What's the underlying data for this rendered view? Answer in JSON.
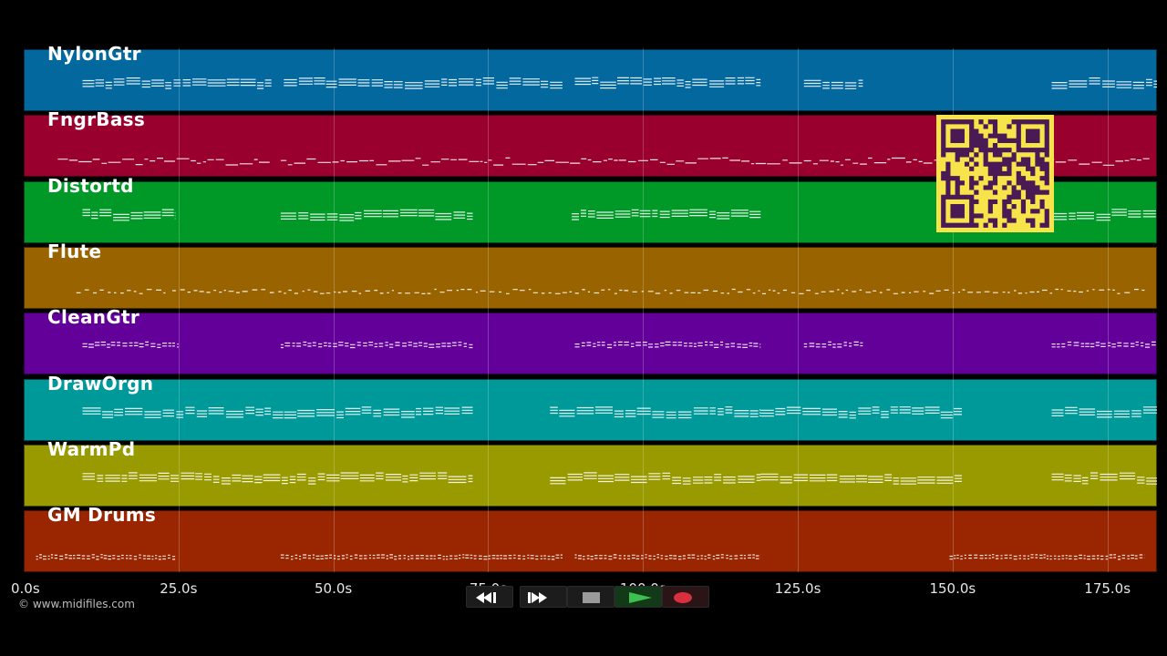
{
  "timeline": {
    "max_seconds": 183,
    "tick_labels": [
      "0.0s",
      "25.0s",
      "50.0s",
      "75.0s",
      "100.0s",
      "125.0s",
      "150.0s",
      "175.0s"
    ],
    "tick_values": [
      0,
      25,
      50,
      75,
      100,
      125,
      150,
      175
    ]
  },
  "tracks": [
    {
      "name": "NylonGtr",
      "color": "#02689e",
      "style": "chord",
      "segments": [
        [
          9.5,
          40
        ],
        [
          42,
          87
        ],
        [
          89,
          119
        ],
        [
          126,
          135.5
        ],
        [
          166,
          183
        ]
      ]
    },
    {
      "name": "FngrBass",
      "color": "#9a002d",
      "style": "bass",
      "segments": [
        [
          5.5,
          40
        ],
        [
          41.5,
          182
        ]
      ]
    },
    {
      "name": "Distortd",
      "color": "#009927",
      "style": "chord",
      "segments": [
        [
          9.5,
          24.5
        ],
        [
          41.5,
          72.5
        ],
        [
          88.5,
          119
        ],
        [
          166,
          183
        ]
      ]
    },
    {
      "name": "Flute",
      "color": "#996300",
      "style": "dots",
      "segments": [
        [
          8.5,
          23
        ],
        [
          24,
          181
        ]
      ]
    },
    {
      "name": "CleanGtr",
      "color": "#630099",
      "style": "dash",
      "segments": [
        [
          9.5,
          25
        ],
        [
          41.5,
          72.5
        ],
        [
          89,
          119
        ],
        [
          126,
          135.5
        ],
        [
          166,
          183
        ]
      ]
    },
    {
      "name": "DrawOrgn",
      "color": "#009999",
      "style": "chord",
      "segments": [
        [
          9.5,
          72.5
        ],
        [
          85,
          119
        ],
        [
          119,
          151.5
        ],
        [
          166,
          183
        ]
      ]
    },
    {
      "name": "WarmPd",
      "color": "#999900",
      "style": "chord",
      "segments": [
        [
          9.5,
          72.5
        ],
        [
          85,
          119
        ],
        [
          119,
          151.5
        ],
        [
          166,
          183
        ]
      ]
    },
    {
      "name": "GM Drums",
      "color": "#992600",
      "style": "drums",
      "segments": [
        [
          2,
          24.5
        ],
        [
          41.5,
          87
        ],
        [
          89,
          119
        ],
        [
          149.5,
          181
        ]
      ]
    }
  ],
  "copyright": "© www.midifiles.com",
  "transport": {
    "buttons": [
      {
        "name": "rewind-icon",
        "color": "#ffffff"
      },
      {
        "name": "fast-forward-icon",
        "color": "#ffffff"
      },
      {
        "name": "stop-icon",
        "color": "#9a9a9a"
      },
      {
        "name": "play-icon",
        "color": "#3fbf4f"
      },
      {
        "name": "record-icon",
        "color": "#d93040"
      }
    ]
  },
  "overlay": {
    "qr_code": "qr-code"
  },
  "colors": {
    "qr_bg": "#f7e34a",
    "qr_fg": "#4a1a55",
    "background": "#000000"
  }
}
